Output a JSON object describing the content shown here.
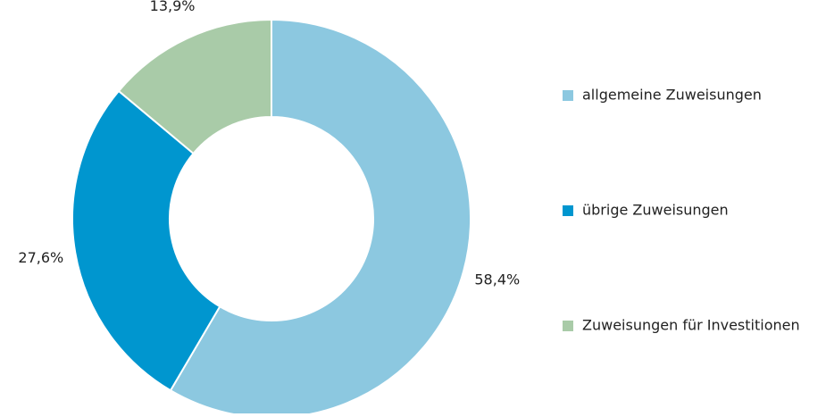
{
  "chart_data": {
    "type": "donut",
    "categories": [
      "allgemeine Zuweisungen",
      "übrige Zuweisungen",
      "Zuweisungen für Investitionen"
    ],
    "values": [
      58.4,
      27.6,
      13.9
    ],
    "value_labels": [
      "58,4%",
      "27,6%",
      "13,9%"
    ],
    "colors": [
      "#8cc8e0",
      "#0096cf",
      "#a9cba8"
    ],
    "legend": "right"
  }
}
